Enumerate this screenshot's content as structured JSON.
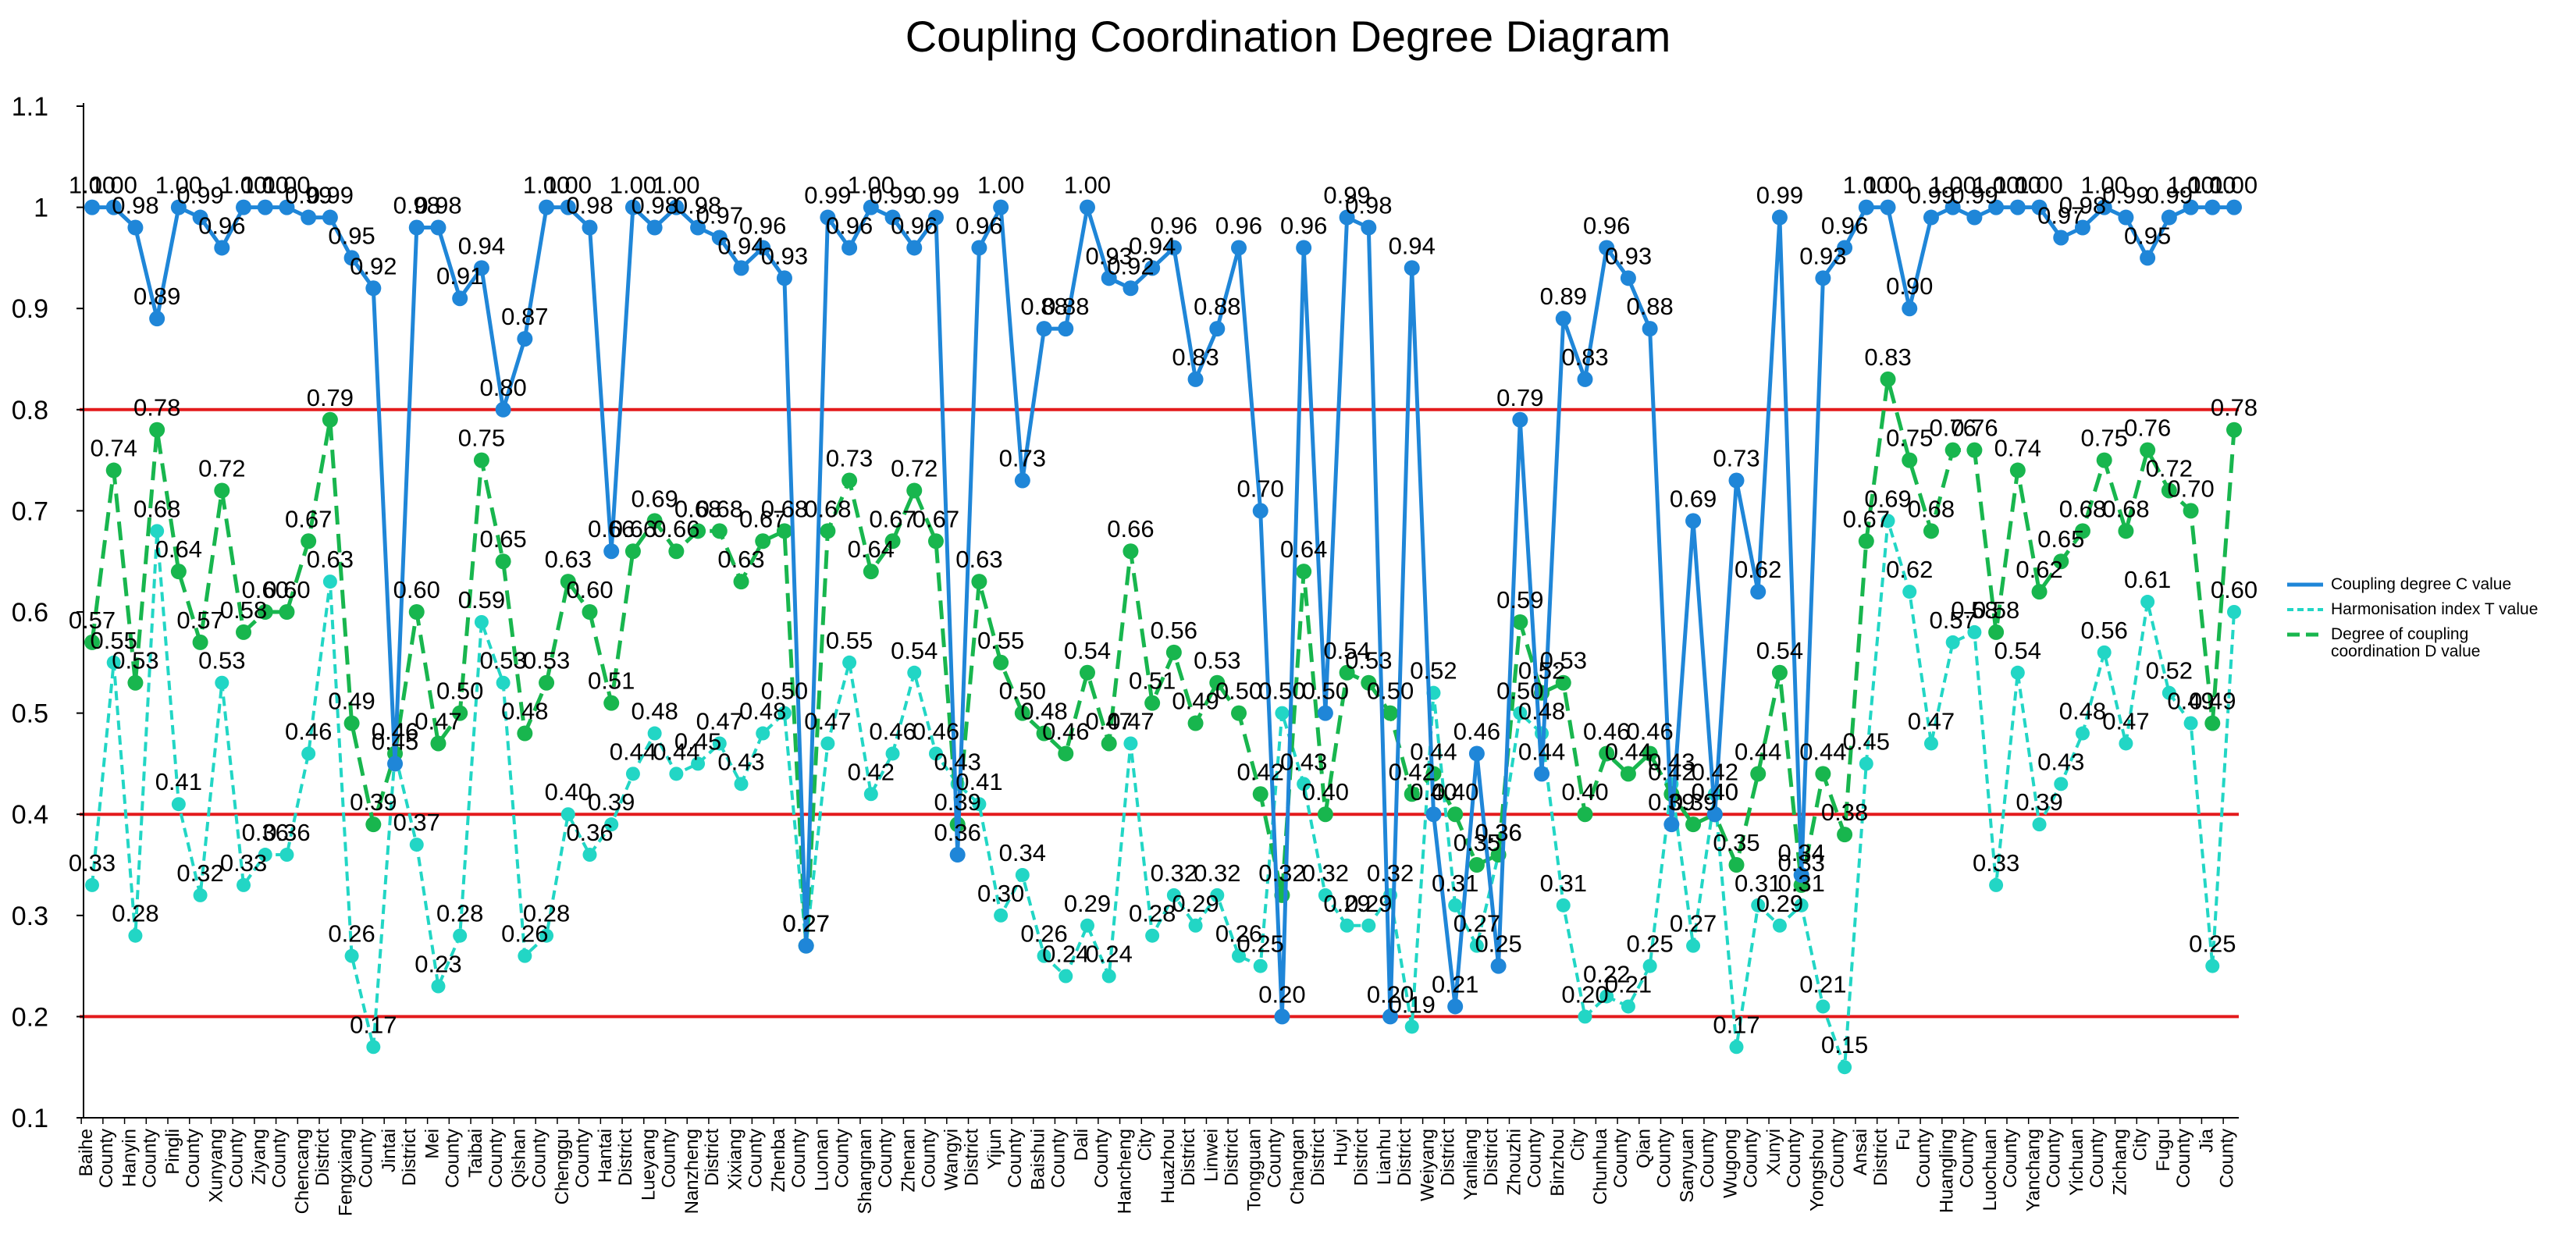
{
  "chart_data": {
    "type": "line",
    "title": "Coupling Coordination Degree Diagram",
    "xlabel": "",
    "ylabel": "",
    "ylim": [
      0.1,
      1.1
    ],
    "yticks": [
      "0.1",
      "0.2",
      "0.3",
      "0.4",
      "0.5",
      "0.6",
      "0.7",
      "0.8",
      "0.9",
      "1",
      "1.1"
    ],
    "reference_lines": [
      0.2,
      0.4,
      0.8
    ],
    "legend_position": "right",
    "colors": {
      "C": "#1f86d8",
      "T": "#22d6c5",
      "D": "#18b64e",
      "ref": "#e31a1c"
    },
    "tick_labels": [
      "Baihe County",
      "Hanyin County",
      "Pingli County",
      "Xunyang County",
      "Ziyang County",
      "Chencang District",
      "Fengxiang County",
      "Jintai District",
      "Mei County",
      "Taibai County",
      "Qishan County",
      "Chenggu County",
      "Hantai District",
      "Lueyang County",
      "Nanzheng District",
      "Xixiang County",
      "Zhenba County",
      "Luonan County",
      "Shangnan County",
      "Zhenan County",
      "Wangyi District",
      "Yijun County",
      "Baishui County",
      "Dali County",
      "Hancheng City",
      "Huazhou District",
      "Linwei District",
      "Tongguan County",
      "Changan District",
      "Huyi District",
      "Lianhu District",
      "Weiyang District",
      "Yanliang District",
      "Zhouzhi County",
      "Binzhou City",
      "Chunhua County",
      "Qian County",
      "Sanyuan County",
      "Wugong County",
      "Xunyi County",
      "Yongshou County",
      "Ansai District",
      "Fu County",
      "Huangling County",
      "Luochuan County",
      "Yanchang County",
      "Yichuan County",
      "Zichang City",
      "Fugu County",
      "Jia County"
    ],
    "series": [
      {
        "name": "Coupling degree C value",
        "key": "C",
        "values": [
          1.0,
          1.0,
          0.98,
          0.89,
          1.0,
          0.99,
          0.96,
          1.0,
          1.0,
          1.0,
          0.99,
          0.99,
          0.95,
          0.92,
          0.45,
          0.98,
          0.98,
          0.91,
          0.94,
          0.8,
          0.87,
          1.0,
          1.0,
          0.98,
          0.66,
          1.0,
          0.98,
          1.0,
          0.98,
          0.97,
          0.94,
          0.96,
          0.93,
          0.27,
          0.99,
          0.96,
          1.0,
          0.99,
          0.96,
          0.99,
          0.36,
          0.96,
          1.0,
          0.73,
          0.88,
          0.88,
          1.0,
          0.93,
          0.92,
          0.94,
          0.96,
          0.83,
          0.88,
          0.96,
          0.7,
          0.2,
          0.96,
          0.5,
          0.99,
          0.98,
          0.2,
          0.94,
          0.4,
          0.21,
          0.46,
          0.25,
          0.79,
          0.44,
          0.89,
          0.83,
          0.96,
          0.93,
          0.88,
          0.39,
          0.69,
          0.4,
          0.73,
          0.62,
          0.99,
          0.34,
          0.93,
          0.96,
          1.0,
          1.0,
          0.9,
          0.99,
          1.0,
          0.99,
          1.0,
          1.0,
          1.0,
          0.97,
          0.98,
          1.0,
          0.99,
          0.95,
          0.99,
          1.0,
          1.0,
          1.0
        ]
      },
      {
        "name": "Harmonisation index T value",
        "key": "T",
        "values": [
          0.33,
          0.55,
          0.28,
          0.68,
          0.41,
          0.32,
          0.53,
          0.33,
          0.36,
          0.36,
          0.46,
          0.63,
          0.26,
          0.17,
          0.46,
          0.37,
          0.23,
          0.28,
          0.59,
          0.53,
          0.26,
          0.28,
          0.4,
          0.36,
          0.39,
          0.44,
          0.48,
          0.44,
          0.45,
          0.47,
          0.43,
          0.48,
          0.5,
          0.27,
          0.47,
          0.55,
          0.42,
          0.46,
          0.54,
          0.46,
          0.43,
          0.41,
          0.3,
          0.34,
          0.26,
          0.24,
          0.29,
          0.24,
          0.47,
          0.28,
          0.32,
          0.29,
          0.32,
          0.26,
          0.25,
          0.5,
          0.43,
          0.32,
          0.29,
          0.29,
          0.32,
          0.19,
          0.52,
          0.31,
          0.27,
          0.36,
          0.5,
          0.48,
          0.31,
          0.2,
          0.22,
          0.21,
          0.25,
          0.43,
          0.27,
          0.42,
          0.17,
          0.31,
          0.29,
          0.31,
          0.21,
          0.15,
          0.45,
          0.69,
          0.62,
          0.47,
          0.57,
          0.58,
          0.33,
          0.54,
          0.39,
          0.43,
          0.48,
          0.56,
          0.47,
          0.61,
          0.52,
          0.49,
          0.25,
          0.6
        ]
      },
      {
        "name": "Degree of coupling coordination D value",
        "key": "D",
        "values": [
          0.57,
          0.74,
          0.53,
          0.78,
          0.64,
          0.57,
          0.72,
          0.58,
          0.6,
          0.6,
          0.67,
          0.79,
          0.49,
          0.39,
          0.46,
          0.6,
          0.47,
          0.5,
          0.75,
          0.65,
          0.48,
          0.53,
          0.63,
          0.6,
          0.51,
          0.66,
          0.69,
          0.66,
          0.68,
          0.68,
          0.63,
          0.67,
          0.68,
          0.27,
          0.68,
          0.73,
          0.64,
          0.67,
          0.72,
          0.67,
          0.39,
          0.63,
          0.55,
          0.5,
          0.48,
          0.46,
          0.54,
          0.47,
          0.66,
          0.51,
          0.56,
          0.49,
          0.53,
          0.5,
          0.42,
          0.32,
          0.64,
          0.4,
          0.54,
          0.53,
          0.5,
          0.42,
          0.44,
          0.4,
          0.35,
          0.36,
          0.59,
          0.52,
          0.53,
          0.4,
          0.46,
          0.44,
          0.46,
          0.42,
          0.39,
          0.4,
          0.35,
          0.44,
          0.54,
          0.33,
          0.44,
          0.38,
          0.67,
          0.83,
          0.75,
          0.68,
          0.76,
          0.76,
          0.58,
          0.74,
          0.62,
          0.65,
          0.68,
          0.75,
          0.68,
          0.76,
          0.72,
          0.7,
          0.49,
          0.78
        ]
      }
    ]
  }
}
